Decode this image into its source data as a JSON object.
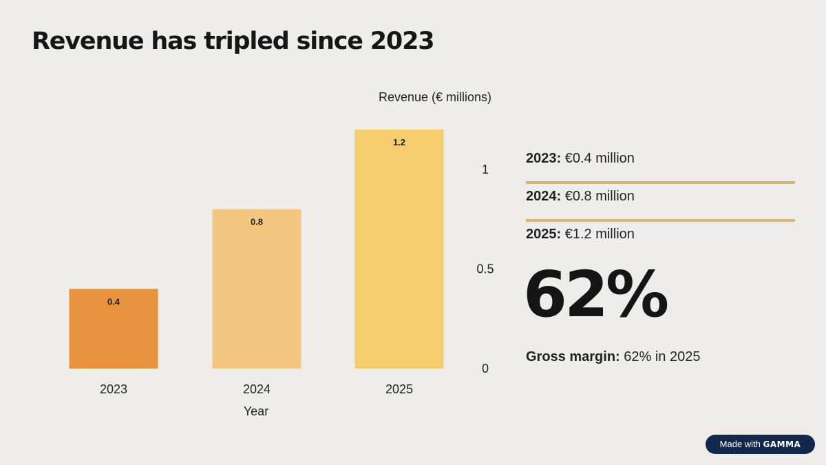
{
  "title": "Revenue has tripled since 2023",
  "chart_data": {
    "type": "bar",
    "title": "Revenue (€ millions)",
    "xlabel": "Year",
    "ylabel": "",
    "categories": [
      "2023",
      "2024",
      "2025"
    ],
    "values": [
      0.4,
      0.8,
      1.2
    ],
    "data_labels": [
      "0.4",
      "0.8",
      "1.2"
    ],
    "bar_colors": [
      "#e8943f",
      "#f4c77e",
      "#f5cc6e"
    ],
    "ylim": [
      0,
      1.2
    ],
    "yticks": [
      0,
      0.5,
      1
    ],
    "ytick_labels": [
      "0",
      "0.5",
      "1"
    ],
    "y_axis_side": "right",
    "grid": false,
    "legend": "none"
  },
  "stats": [
    {
      "year": "2023:",
      "value": "€0.4 million"
    },
    {
      "year": "2024:",
      "value": "€0.8 million"
    },
    {
      "year": "2025:",
      "value": "€1.2 million"
    }
  ],
  "highlight": {
    "big_number": "62%",
    "label": "Gross margin:",
    "text": "62% in 2025"
  },
  "badge": {
    "prefix": "Made with",
    "brand": "GAMMA"
  },
  "colors": {
    "background": "#efede9",
    "rule": "#d4b27a",
    "badge": "#13294b"
  }
}
